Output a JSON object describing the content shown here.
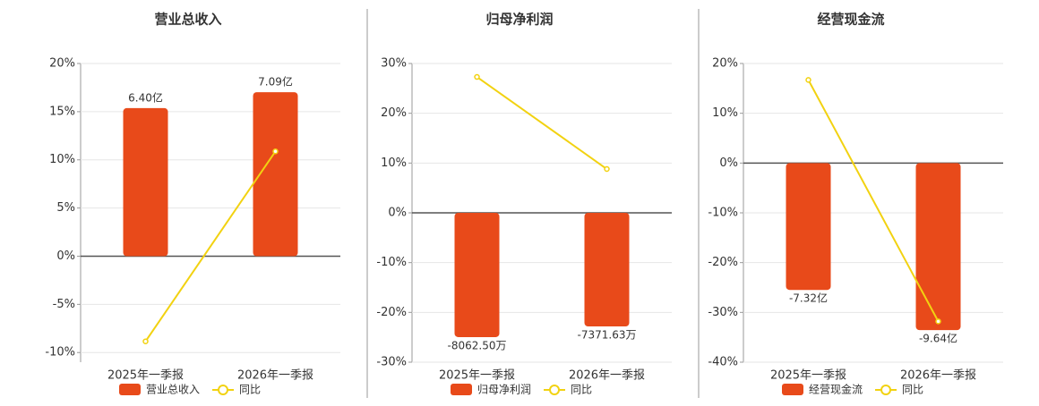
{
  "chart_data": [
    {
      "type": "bar",
      "title": "营业总收入",
      "categories": [
        "2025年一季报",
        "2026年一季报"
      ],
      "ylim": [
        -11,
        20
      ],
      "yticks": [
        {
          "value": 20,
          "label": "20%"
        },
        {
          "value": 15,
          "label": "15%"
        },
        {
          "value": 10,
          "label": "10%"
        },
        {
          "value": 5,
          "label": "5%"
        },
        {
          "value": 0,
          "label": "0%"
        },
        {
          "value": -5,
          "label": "-5%"
        },
        {
          "value": -10,
          "label": "-10%"
        }
      ],
      "y2lim": [
        -4.58,
        8.33
      ],
      "series": [
        {
          "name": "营业总收入",
          "type": "bar",
          "axis": "y2",
          "color": "#e84a1a",
          "values": [
            6.4,
            7.09
          ],
          "value_labels": [
            "6.40亿",
            "7.09亿"
          ]
        },
        {
          "name": "同比",
          "type": "line",
          "color": "#f2d211",
          "values": [
            -8.84,
            10.88
          ]
        }
      ]
    },
    {
      "type": "bar",
      "title": "归母净利润",
      "categories": [
        "2025年一季报",
        "2026年一季报"
      ],
      "ylim": [
        -30,
        30
      ],
      "yticks": [
        {
          "value": 30,
          "label": "30%"
        },
        {
          "value": 20,
          "label": "20%"
        },
        {
          "value": 10,
          "label": "10%"
        },
        {
          "value": 0,
          "label": "0%"
        },
        {
          "value": -10,
          "label": "-10%"
        },
        {
          "value": -20,
          "label": "-20%"
        },
        {
          "value": -30,
          "label": "-30%"
        }
      ],
      "y2lim": [
        -9690,
        9690
      ],
      "series": [
        {
          "name": "归母净利润",
          "type": "bar",
          "axis": "y2",
          "color": "#e84a1a",
          "values": [
            -8062.5,
            -7371.63
          ],
          "value_labels": [
            "-8062.50万",
            "-7371.63万"
          ]
        },
        {
          "name": "同比",
          "type": "line",
          "color": "#f2d211",
          "values": [
            27.3,
            8.8
          ]
        }
      ]
    },
    {
      "type": "bar",
      "title": "经营现金流",
      "categories": [
        "2025年一季报",
        "2026年一季报"
      ],
      "ylim": [
        -40,
        20
      ],
      "yticks": [
        {
          "value": 20,
          "label": "20%"
        },
        {
          "value": 10,
          "label": "10%"
        },
        {
          "value": 0,
          "label": "0%"
        },
        {
          "value": -10,
          "label": "-10%"
        },
        {
          "value": -20,
          "label": "-20%"
        },
        {
          "value": -30,
          "label": "-30%"
        },
        {
          "value": -40,
          "label": "-40%"
        }
      ],
      "y2lim": [
        -11.49,
        5.75
      ],
      "series": [
        {
          "name": "经营现金流",
          "type": "bar",
          "axis": "y2",
          "color": "#e84a1a",
          "values": [
            -7.32,
            -9.64
          ],
          "value_labels": [
            "-7.32亿",
            "-9.64亿"
          ]
        },
        {
          "name": "同比",
          "type": "line",
          "color": "#f2d211",
          "values": [
            16.7,
            -31.8
          ]
        }
      ]
    }
  ]
}
